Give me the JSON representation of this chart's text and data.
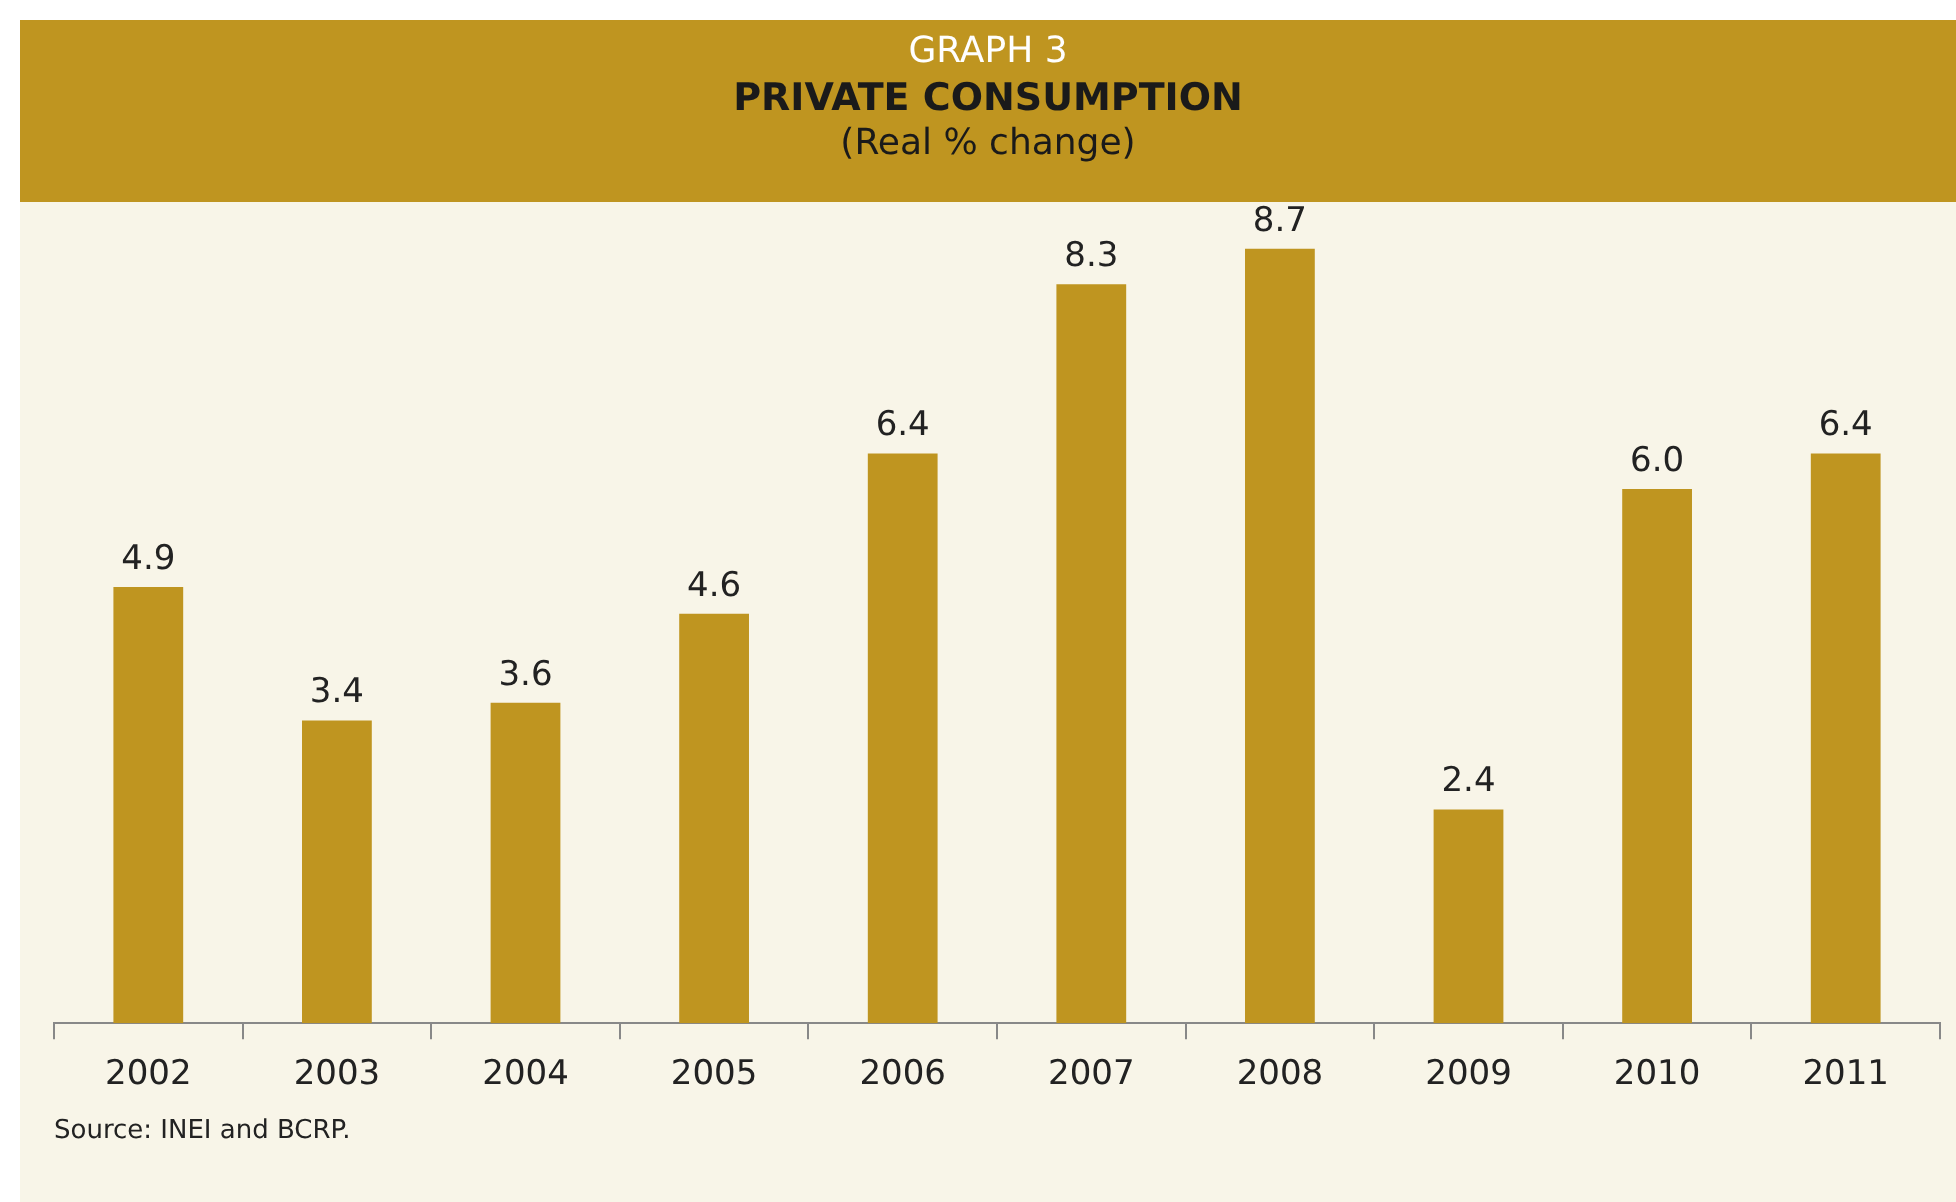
{
  "chart_data": {
    "type": "bar",
    "title": "PRIVATE CONSUMPTION",
    "subtitle": "(Real % change)",
    "annotations": [
      "GRAPH 3",
      "Source: INEI and BCRP."
    ],
    "categories": [
      "2002",
      "2003",
      "2004",
      "2005",
      "2006",
      "2007",
      "2008",
      "2009",
      "2010",
      "2011"
    ],
    "values": [
      4.9,
      3.4,
      3.6,
      4.6,
      6.4,
      8.3,
      8.7,
      2.4,
      6.0,
      6.4
    ],
    "value_labels": [
      "4.9",
      "3.4",
      "3.6",
      "4.6",
      "6.4",
      "8.3",
      "8.7",
      "2.4",
      "6.0",
      "6.4"
    ],
    "color": "#bf9520",
    "tick_labels": "x",
    "grid": false,
    "legend": false
  }
}
